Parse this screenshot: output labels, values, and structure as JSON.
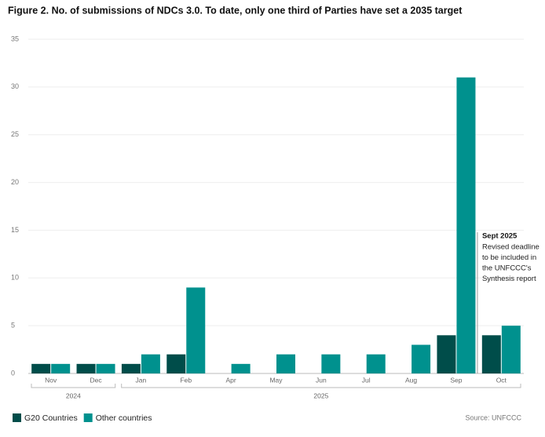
{
  "chart_data": {
    "type": "bar",
    "title": "Figure 2. No. of submissions of NDCs 3.0. To date, only one third of Parties have set a 2035 target",
    "categories": [
      "Nov",
      "Dec",
      "Jan",
      "Feb",
      "Apr",
      "May",
      "Jun",
      "Jul",
      "Aug",
      "Sep",
      "Oct"
    ],
    "category_groups": [
      {
        "label": "2024",
        "count": 2
      },
      {
        "label": "2025",
        "count": 9
      }
    ],
    "series": [
      {
        "name": "G20 Countries",
        "color": "#004d4a",
        "values": [
          1,
          1,
          1,
          2,
          0,
          0,
          0,
          0,
          0,
          4,
          4
        ]
      },
      {
        "name": "Other countries",
        "color": "#00918e",
        "values": [
          1,
          1,
          2,
          9,
          1,
          2,
          2,
          2,
          3,
          31,
          5
        ]
      }
    ],
    "ylim": [
      0,
      35
    ],
    "yticks": [
      0,
      5,
      10,
      15,
      20,
      25,
      30,
      35
    ],
    "grid": true,
    "legend": "bottom-left",
    "annotation": {
      "title": "Sept 2025",
      "lines": [
        "Revised deadline",
        "to be included in",
        "the UNFCCC's",
        "Synthesis report"
      ]
    },
    "source": "Source: UNFCCC"
  }
}
